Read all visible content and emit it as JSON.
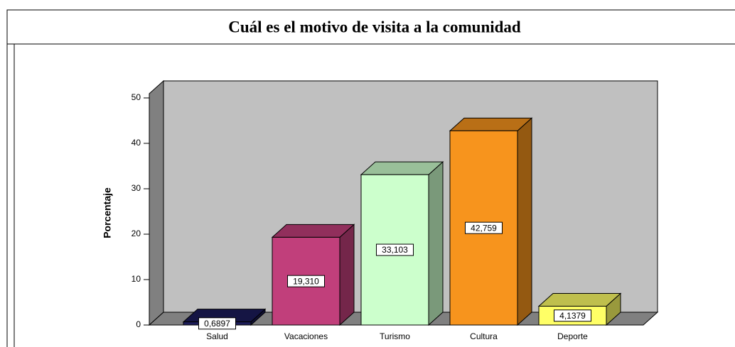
{
  "chart_data": {
    "type": "bar3d",
    "title": "Cuál es el motivo de visita a la comunidad",
    "y_label": "Porcentaje",
    "categories": [
      "Salud",
      "Vacaciones",
      "Turismo",
      "Cultura",
      "Deporte"
    ],
    "values": [
      0.6897,
      19.31,
      33.103,
      42.759,
      4.1379
    ],
    "value_labels": [
      "0,6897",
      "19,310",
      "33,103",
      "42,759",
      "4,1379"
    ],
    "colors": [
      "#1c1c5a",
      "#c13f7b",
      "#ccffcc",
      "#f7941d",
      "#ffff66"
    ],
    "ylim": [
      0,
      50
    ],
    "yticks": [
      0,
      10,
      20,
      30,
      40,
      50
    ],
    "grid": false
  }
}
